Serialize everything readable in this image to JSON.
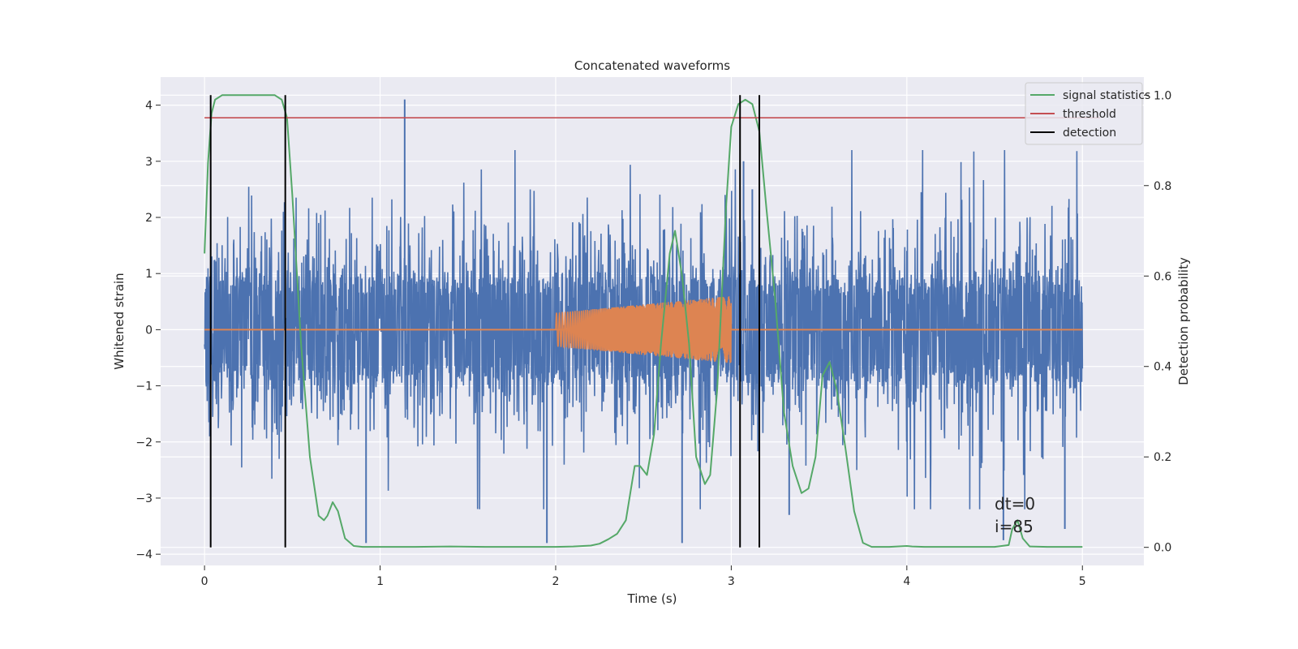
{
  "chart_data": {
    "type": "line",
    "title": "Concatenated waveforms",
    "xlabel": "Time (s)",
    "ylabel_left": "Whitened strain",
    "ylabel_right": "Detection probability",
    "xlim": [
      -0.25,
      5.35
    ],
    "ylim_left": [
      -4.2,
      4.5
    ],
    "ylim_right": [
      -0.04,
      1.04
    ],
    "xticks": [
      0,
      1,
      2,
      3,
      4,
      5
    ],
    "yticks_left": [
      -4,
      -3,
      -2,
      -1,
      0,
      1,
      2,
      3,
      4
    ],
    "yticks_right": [
      0.0,
      0.2,
      0.4,
      0.6,
      0.8,
      1.0
    ],
    "grid": true,
    "legend_position": "top-right",
    "colors": {
      "strain": "#4c72b0",
      "injection": "#dd8452",
      "signal_statistics": "#55a868",
      "threshold": "#c44e52",
      "detection": "#000000",
      "axes_background": "#eaeaf2",
      "grid": "#ffffff"
    },
    "series": [
      {
        "name": "",
        "axis": "left",
        "kind": "noise",
        "color": "#4c72b0",
        "x_range": [
          0,
          5
        ],
        "amplitude_core": 1.0,
        "notable_spikes": [
          {
            "x": 0.03,
            "y": -1.9
          },
          {
            "x": 0.45,
            "y": 2.1
          },
          {
            "x": 0.92,
            "y": -3.8
          },
          {
            "x": 1.14,
            "y": 4.1
          },
          {
            "x": 1.95,
            "y": -3.8
          },
          {
            "x": 2.72,
            "y": -3.8
          },
          {
            "x": 3.07,
            "y": 3.0
          },
          {
            "x": 3.12,
            "y": 2.5
          },
          {
            "x": 3.33,
            "y": -3.3
          },
          {
            "x": 4.55,
            "y": -3.75
          },
          {
            "x": 4.9,
            "y": -3.55
          }
        ]
      },
      {
        "name": "",
        "axis": "left",
        "kind": "injection",
        "color": "#dd8452",
        "baseline": 0,
        "x_start": 2.0,
        "x_end": 3.0,
        "amplitude_start": 0.3,
        "amplitude_end": 0.6
      },
      {
        "name": "signal statistics",
        "axis": "right",
        "color": "#55a868",
        "x": [
          0.0,
          0.02,
          0.04,
          0.06,
          0.1,
          0.2,
          0.3,
          0.4,
          0.44,
          0.47,
          0.5,
          0.55,
          0.6,
          0.65,
          0.68,
          0.7,
          0.73,
          0.76,
          0.8,
          0.85,
          0.9,
          1.0,
          1.2,
          1.4,
          1.6,
          1.8,
          2.0,
          2.1,
          2.2,
          2.25,
          2.3,
          2.35,
          2.4,
          2.45,
          2.48,
          2.52,
          2.56,
          2.6,
          2.65,
          2.68,
          2.72,
          2.76,
          2.8,
          2.85,
          2.88,
          2.92,
          2.97,
          3.0,
          3.04,
          3.08,
          3.12,
          3.16,
          3.2,
          3.25,
          3.3,
          3.35,
          3.4,
          3.44,
          3.48,
          3.52,
          3.56,
          3.6,
          3.65,
          3.7,
          3.75,
          3.8,
          3.9,
          4.0,
          4.03,
          4.1,
          4.3,
          4.5,
          4.58,
          4.6,
          4.63,
          4.66,
          4.7,
          4.8,
          5.0
        ],
        "y": [
          0.65,
          0.85,
          0.96,
          0.99,
          1.0,
          1.0,
          1.0,
          1.0,
          0.99,
          0.95,
          0.78,
          0.45,
          0.2,
          0.07,
          0.06,
          0.07,
          0.1,
          0.08,
          0.02,
          0.003,
          0.001,
          0.001,
          0.001,
          0.002,
          0.001,
          0.001,
          0.001,
          0.002,
          0.004,
          0.008,
          0.018,
          0.03,
          0.06,
          0.18,
          0.18,
          0.16,
          0.25,
          0.45,
          0.65,
          0.7,
          0.6,
          0.45,
          0.2,
          0.14,
          0.16,
          0.35,
          0.75,
          0.93,
          0.98,
          0.99,
          0.98,
          0.92,
          0.75,
          0.55,
          0.3,
          0.18,
          0.12,
          0.13,
          0.2,
          0.38,
          0.41,
          0.35,
          0.22,
          0.08,
          0.01,
          0.001,
          0.001,
          0.003,
          0.002,
          0.001,
          0.001,
          0.001,
          0.005,
          0.04,
          0.06,
          0.02,
          0.002,
          0.001,
          0.001
        ]
      },
      {
        "name": "threshold",
        "axis": "right",
        "color": "#c44e52",
        "x": [
          0,
          5.1
        ],
        "y": [
          0.95,
          0.95
        ]
      },
      {
        "name": "detection",
        "axis": "right",
        "color": "#000000",
        "kind": "vlines",
        "x": [
          0.035,
          0.46,
          3.05,
          3.16
        ],
        "y_range": [
          0,
          1.0
        ]
      }
    ],
    "annotation": {
      "lines": [
        "dt=0",
        "i=85"
      ],
      "x": 4.5,
      "y": -3.0
    }
  }
}
